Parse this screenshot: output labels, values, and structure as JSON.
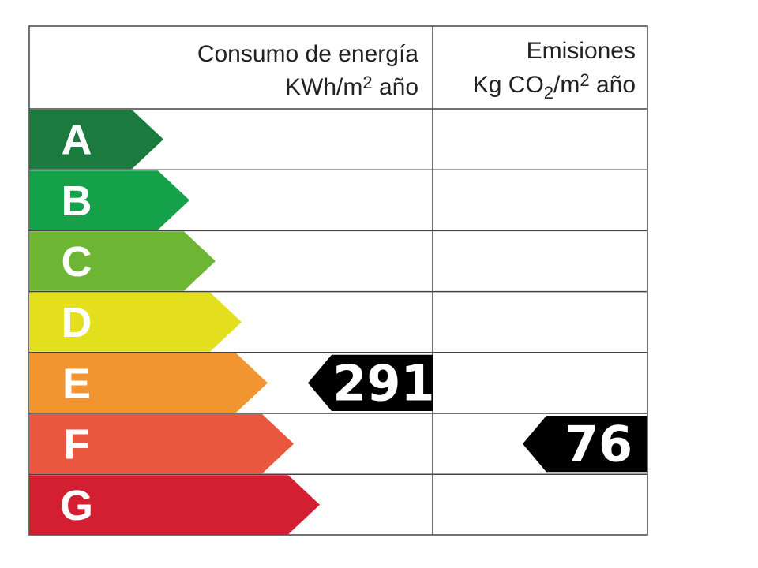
{
  "consumption": {
    "title": "Consumo de energía",
    "unit": [
      "KWh/m",
      "2",
      " año"
    ],
    "value": "291",
    "class": "E"
  },
  "emissions": {
    "title": "Emisiones",
    "unit": [
      "Kg CO",
      "2",
      "/m",
      "2",
      " año"
    ],
    "value": "76",
    "class": "F"
  },
  "ratings": [
    {
      "letter": "A",
      "color": "#1b7b3f"
    },
    {
      "letter": "B",
      "color": "#15a04a"
    },
    {
      "letter": "C",
      "color": "#6cb634"
    },
    {
      "letter": "D",
      "color": "#e4df1d"
    },
    {
      "letter": "E",
      "color": "#f0952f"
    },
    {
      "letter": "F",
      "color": "#e8573e"
    },
    {
      "letter": "G",
      "color": "#d41f32"
    }
  ]
}
